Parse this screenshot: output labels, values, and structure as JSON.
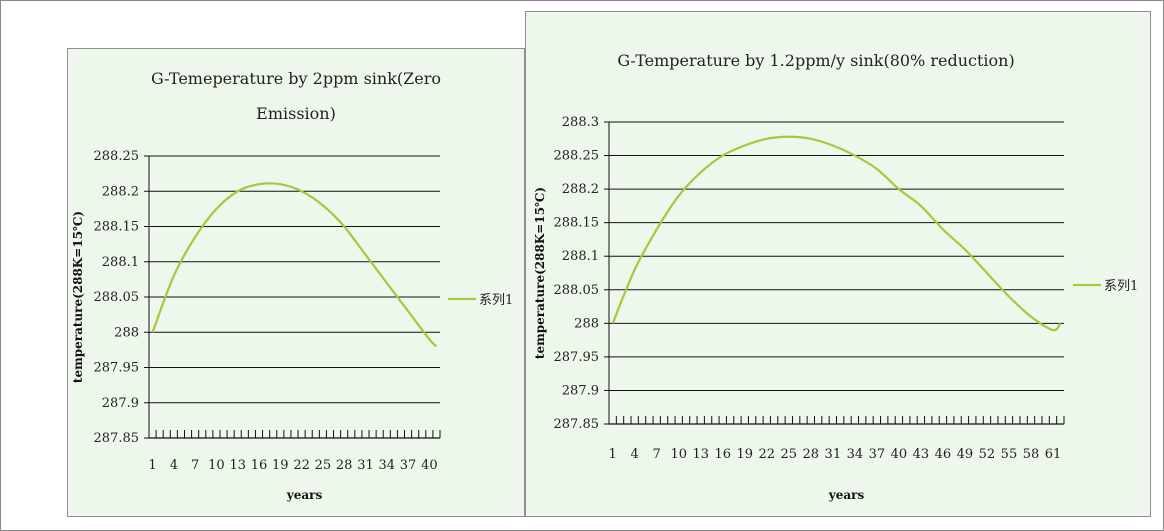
{
  "chart_data": [
    {
      "type": "line",
      "title_lines": [
        "G-Temeperature by 2ppm sink(Zero",
        "Emission)"
      ],
      "xlabel": "years",
      "ylabel": "temperature(288K=15℃)",
      "ylim": [
        287.85,
        288.25
      ],
      "y_ticks": [
        "288.25",
        "288.2",
        "288.15",
        "288.1",
        "288.05",
        "288",
        "287.95",
        "287.9",
        "287.85"
      ],
      "x_tick_labels": [
        "1",
        "4",
        "7",
        "10",
        "13",
        "16",
        "19",
        "22",
        "25",
        "28",
        "31",
        "34",
        "37",
        "40"
      ],
      "x_count": 41,
      "grid": true,
      "legend_position": "right",
      "line_color": "#a8c83a",
      "series": [
        {
          "name": "系列1",
          "x": [
            1,
            4,
            7,
            10,
            13,
            16,
            19,
            22,
            25,
            28,
            31,
            34,
            37,
            40,
            41
          ],
          "values": [
            288.0,
            288.08,
            288.135,
            288.175,
            288.2,
            288.21,
            288.21,
            288.2,
            288.18,
            288.15,
            288.11,
            288.07,
            288.03,
            287.99,
            287.98
          ]
        }
      ]
    },
    {
      "type": "line",
      "title_lines": [
        "G-Temperature by 1.2ppm/y sink(80% reduction)"
      ],
      "xlabel": "years",
      "ylabel": "temperature(288K=15℃)",
      "ylim": [
        287.85,
        288.3
      ],
      "y_ticks": [
        "288.3",
        "288.25",
        "288.2",
        "288.15",
        "288.1",
        "288.05",
        "288",
        "287.95",
        "287.9",
        "287.85"
      ],
      "x_tick_labels": [
        "1",
        "4",
        "7",
        "10",
        "13",
        "16",
        "19",
        "22",
        "25",
        "28",
        "31",
        "34",
        "37",
        "40",
        "43",
        "46",
        "49",
        "52",
        "55",
        "58",
        "61"
      ],
      "x_count": 62,
      "grid": true,
      "legend_position": "right",
      "line_color": "#a8c83a",
      "series": [
        {
          "name": "系列1",
          "x": [
            1,
            4,
            7,
            10,
            13,
            16,
            19,
            22,
            25,
            28,
            31,
            34,
            37,
            40,
            43,
            46,
            49,
            52,
            55,
            58,
            61,
            62
          ],
          "values": [
            288.0,
            288.08,
            288.14,
            288.19,
            288.225,
            288.25,
            288.265,
            288.275,
            288.278,
            288.275,
            288.265,
            288.25,
            288.23,
            288.2,
            288.175,
            288.14,
            288.11,
            288.075,
            288.04,
            288.01,
            287.99,
            288.0
          ]
        }
      ]
    }
  ]
}
